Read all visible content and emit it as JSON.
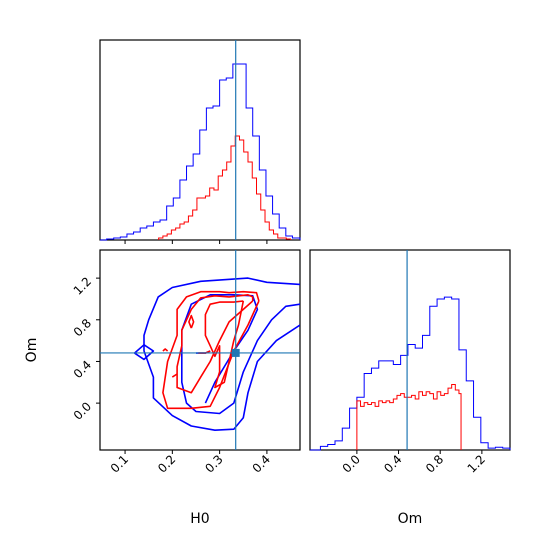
{
  "chart_data": [
    {
      "type": "histogram",
      "panel": "H0 marginal",
      "x_range": [
        0.047,
        0.47
      ],
      "truth": 0.334,
      "series": [
        {
          "color": "#0000ff",
          "edges": [
            0.047,
            0.061,
            0.076,
            0.09,
            0.104,
            0.118,
            0.132,
            0.146,
            0.16,
            0.174,
            0.188,
            0.202,
            0.216,
            0.23,
            0.244,
            0.258,
            0.272,
            0.286,
            0.3,
            0.314,
            0.328,
            0.342,
            0.356,
            0.37,
            0.384,
            0.398,
            0.412,
            0.426,
            0.44,
            0.454,
            0.47
          ],
          "counts": [
            0,
            0.005,
            0.01,
            0.015,
            0.03,
            0.04,
            0.06,
            0.07,
            0.09,
            0.1,
            0.17,
            0.21,
            0.3,
            0.37,
            0.43,
            0.55,
            0.66,
            0.67,
            0.8,
            0.81,
            0.88,
            0.88,
            0.66,
            0.52,
            0.35,
            0.22,
            0.13,
            0.06,
            0.02,
            0.01
          ]
        },
        {
          "color": "#ff0000",
          "edges": [
            0.171,
            0.18,
            0.189,
            0.198,
            0.207,
            0.216,
            0.225,
            0.234,
            0.243,
            0.252,
            0.261,
            0.27,
            0.279,
            0.288,
            0.297,
            0.306,
            0.315,
            0.324,
            0.333,
            0.342,
            0.351,
            0.36,
            0.369,
            0.378,
            0.387,
            0.396,
            0.405,
            0.414,
            0.423,
            0.432,
            0.441,
            0.45
          ],
          "counts": [
            0.01,
            0.02,
            0.03,
            0.05,
            0.06,
            0.08,
            0.09,
            0.12,
            0.15,
            0.21,
            0.21,
            0.22,
            0.26,
            0.25,
            0.32,
            0.35,
            0.39,
            0.47,
            0.52,
            0.5,
            0.44,
            0.39,
            0.31,
            0.23,
            0.15,
            0.09,
            0.05,
            0.03,
            0.01,
            0.01,
            0.005
          ]
        }
      ]
    },
    {
      "type": "contour",
      "panel": "H0 vs Om",
      "xlabel": "H0",
      "ylabel": "Om",
      "x_range": [
        0.047,
        0.47
      ],
      "y_range": [
        -0.45,
        1.47
      ],
      "x_ticks": [
        0.1,
        0.2,
        0.3,
        0.4
      ],
      "x_tick_labels": [
        "0.1",
        "0.2",
        "0.3",
        "0.4"
      ],
      "y_ticks": [
        0.0,
        0.4,
        0.8,
        1.2
      ],
      "y_tick_labels": [
        "0.0",
        "0.4",
        "0.8",
        "1.2"
      ],
      "truth": [
        0.334,
        0.482
      ],
      "marker": [
        0.334,
        0.482
      ],
      "series": [
        {
          "color": "#0000ff",
          "lines": [
            [
              [
                0.47,
                1.14
              ],
              [
                0.4,
                1.16
              ],
              [
                0.36,
                1.2
              ],
              [
                0.26,
                1.17
              ],
              [
                0.2,
                1.11
              ],
              [
                0.17,
                1.02
              ],
              [
                0.15,
                0.8
              ],
              [
                0.14,
                0.65
              ],
              [
                0.14,
                0.5
              ],
              [
                0.16,
                0.25
              ],
              [
                0.16,
                0.05
              ],
              [
                0.2,
                -0.12
              ],
              [
                0.24,
                -0.22
              ],
              [
                0.29,
                -0.26
              ],
              [
                0.33,
                -0.25
              ],
              [
                0.35,
                -0.14
              ],
              [
                0.36,
                0.1
              ],
              [
                0.38,
                0.4
              ],
              [
                0.42,
                0.6
              ],
              [
                0.47,
                0.75
              ]
            ],
            [
              [
                0.47,
                0.95
              ],
              [
                0.44,
                0.93
              ],
              [
                0.41,
                0.8
              ],
              [
                0.38,
                0.6
              ],
              [
                0.35,
                0.3
              ],
              [
                0.33,
                0.0
              ],
              [
                0.3,
                -0.1
              ],
              [
                0.25,
                -0.08
              ],
              [
                0.23,
                0.0
              ],
              [
                0.22,
                0.2
              ],
              [
                0.22,
                0.45
              ],
              [
                0.22,
                0.7
              ],
              [
                0.24,
                0.95
              ],
              [
                0.28,
                1.04
              ],
              [
                0.33,
                1.04
              ],
              [
                0.37,
                1.03
              ],
              [
                0.38,
                0.9
              ],
              [
                0.36,
                0.7
              ],
              [
                0.33,
                0.5
              ],
              [
                0.29,
                0.2
              ],
              [
                0.27,
                0.0
              ]
            ],
            [
              [
                0.12,
                0.48
              ],
              [
                0.14,
                0.56
              ],
              [
                0.16,
                0.5
              ],
              [
                0.14,
                0.42
              ],
              [
                0.12,
                0.48
              ]
            ],
            [
              [
                0.25,
                0.48
              ],
              [
                0.27,
                0.48
              ],
              [
                0.28,
                0.5
              ]
            ]
          ]
        },
        {
          "color": "#ff0000",
          "lines": [
            [
              [
                0.383,
                0.98
              ],
              [
                0.378,
                1.06
              ],
              [
                0.35,
                1.07
              ],
              [
                0.32,
                1.06
              ],
              [
                0.3,
                1.07
              ],
              [
                0.26,
                1.07
              ],
              [
                0.23,
                1.02
              ],
              [
                0.21,
                0.9
              ],
              [
                0.21,
                0.65
              ],
              [
                0.19,
                0.4
              ],
              [
                0.18,
                0.1
              ],
              [
                0.19,
                -0.05
              ],
              [
                0.24,
                -0.05
              ],
              [
                0.28,
                -0.03
              ],
              [
                0.3,
                0.15
              ],
              [
                0.33,
                0.5
              ],
              [
                0.36,
                0.75
              ],
              [
                0.383,
                0.98
              ]
            ],
            [
              [
                0.37,
                0.98
              ],
              [
                0.37,
                1.02
              ],
              [
                0.36,
                1.04
              ],
              [
                0.32,
                1.02
              ],
              [
                0.29,
                1.03
              ],
              [
                0.26,
                1.01
              ],
              [
                0.24,
                0.9
              ],
              [
                0.22,
                0.7
              ],
              [
                0.22,
                0.55
              ],
              [
                0.21,
                0.35
              ],
              [
                0.21,
                0.15
              ],
              [
                0.24,
                0.1
              ],
              [
                0.26,
                0.25
              ],
              [
                0.28,
                0.4
              ],
              [
                0.3,
                0.6
              ],
              [
                0.32,
                0.78
              ],
              [
                0.35,
                0.9
              ],
              [
                0.37,
                0.98
              ]
            ],
            [
              [
                0.35,
                0.98
              ],
              [
                0.33,
                0.97
              ],
              [
                0.3,
                0.97
              ],
              [
                0.28,
                0.95
              ],
              [
                0.27,
                0.85
              ],
              [
                0.27,
                0.65
              ],
              [
                0.28,
                0.55
              ],
              [
                0.29,
                0.45
              ],
              [
                0.3,
                0.55
              ],
              [
                0.3,
                0.3
              ],
              [
                0.29,
                0.15
              ],
              [
                0.31,
                0.2
              ],
              [
                0.32,
                0.4
              ],
              [
                0.33,
                0.6
              ],
              [
                0.34,
                0.75
              ],
              [
                0.35,
                0.98
              ]
            ],
            [
              [
                0.24,
                0.72
              ],
              [
                0.245,
                0.78
              ],
              [
                0.24,
                0.84
              ],
              [
                0.235,
                0.78
              ],
              [
                0.24,
                0.72
              ]
            ],
            [
              [
                0.18,
                0.5
              ],
              [
                0.185,
                0.52
              ],
              [
                0.19,
                0.5
              ]
            ],
            [
              [
                0.255,
                0.48
              ],
              [
                0.27,
                0.48
              ],
              [
                0.28,
                0.5
              ]
            ],
            [
              [
                0.2,
                0.25
              ],
              [
                0.21,
                0.28
              ]
            ]
          ]
        }
      ]
    },
    {
      "type": "histogram",
      "panel": "Om marginal",
      "xlabel": "Om",
      "x_range": [
        -0.45,
        1.47
      ],
      "x_ticks": [
        0.0,
        0.4,
        0.8,
        1.2
      ],
      "x_tick_labels": [
        "0.0",
        "0.4",
        "0.8",
        "1.2"
      ],
      "truth": 0.482,
      "series": [
        {
          "color": "#0000ff",
          "edges": [
            -0.45,
            -0.35,
            -0.28,
            -0.21,
            -0.14,
            -0.07,
            0.0,
            0.07,
            0.14,
            0.21,
            0.28,
            0.35,
            0.42,
            0.49,
            0.56,
            0.63,
            0.7,
            0.77,
            0.84,
            0.91,
            0.98,
            1.05,
            1.12,
            1.19,
            1.26,
            1.33,
            1.4,
            1.47
          ],
          "counts": [
            0,
            0.02,
            0.03,
            0.05,
            0.12,
            0.23,
            0.29,
            0.42,
            0.45,
            0.49,
            0.49,
            0.47,
            0.52,
            0.58,
            0.56,
            0.63,
            0.79,
            0.83,
            0.84,
            0.83,
            0.55,
            0.38,
            0.18,
            0.04,
            0.01,
            0.015,
            0.01
          ]
        },
        {
          "color": "#ff0000",
          "edges": [
            0.0,
            0.035,
            0.07,
            0.105,
            0.14,
            0.175,
            0.21,
            0.245,
            0.28,
            0.315,
            0.35,
            0.385,
            0.42,
            0.455,
            0.49,
            0.525,
            0.56,
            0.595,
            0.63,
            0.665,
            0.7,
            0.735,
            0.77,
            0.805,
            0.84,
            0.875,
            0.91,
            0.945,
            0.98,
            1.0
          ],
          "counts": [
            0.27,
            0.24,
            0.26,
            0.25,
            0.26,
            0.24,
            0.27,
            0.26,
            0.27,
            0.26,
            0.28,
            0.3,
            0.31,
            0.29,
            0.29,
            0.3,
            0.28,
            0.32,
            0.3,
            0.32,
            0.31,
            0.28,
            0.32,
            0.3,
            0.31,
            0.34,
            0.36,
            0.33,
            0.31
          ]
        }
      ]
    }
  ]
}
